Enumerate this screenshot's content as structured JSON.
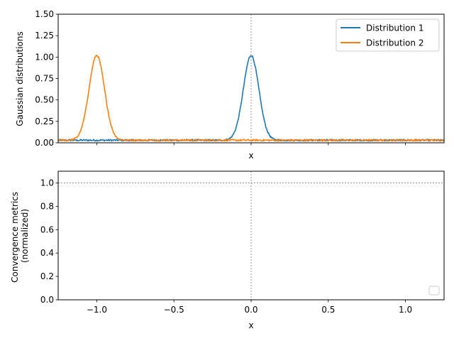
{
  "chart_data": [
    {
      "type": "line",
      "title": "",
      "xlabel": "x",
      "ylabel": "Gaussian distributions",
      "xlim": [
        -1.25,
        1.25
      ],
      "ylim": [
        0.0,
        1.5
      ],
      "yticks": [
        "0.00",
        "0.25",
        "0.50",
        "0.75",
        "1.00",
        "1.25",
        "1.50"
      ],
      "xtick_values": [
        -1.0,
        -0.5,
        0.0,
        0.5,
        1.0
      ],
      "xtick_labels_visible": false,
      "reference_lines": {
        "vertical_x": 0.0
      },
      "legend": {
        "position": "top-right"
      },
      "series": [
        {
          "name": "Distribution 1",
          "color": "#1f77b4",
          "center": 0.0,
          "peak": 1.02,
          "baseline": 0.03,
          "sigma": 0.05,
          "noise": 0.01
        },
        {
          "name": "Distribution 2",
          "color": "#ff7f0e",
          "center": -1.0,
          "peak": 1.02,
          "baseline": 0.03,
          "sigma": 0.05,
          "noise": 0.01
        }
      ]
    },
    {
      "type": "line",
      "title": "",
      "xlabel": "x",
      "ylabel": "Convergence metrics\n(normalized)",
      "ylabel_lines": [
        "Convergence metrics",
        "(normalized)"
      ],
      "xlim": [
        -1.25,
        1.25
      ],
      "ylim": [
        0.0,
        1.1
      ],
      "yticks": [
        "0.0",
        "0.2",
        "0.4",
        "0.6",
        "0.8",
        "1.0"
      ],
      "xticks": [
        "−1.0",
        "−0.5",
        "0.0",
        "0.5",
        "1.0"
      ],
      "xtick_values": [
        -1.0,
        -0.5,
        0.0,
        0.5,
        1.0
      ],
      "reference_lines": {
        "vertical_x": 0.0,
        "horizontal_y": 1.0
      },
      "legend": {
        "position": "bottom-right",
        "entries": []
      },
      "series": []
    }
  ]
}
